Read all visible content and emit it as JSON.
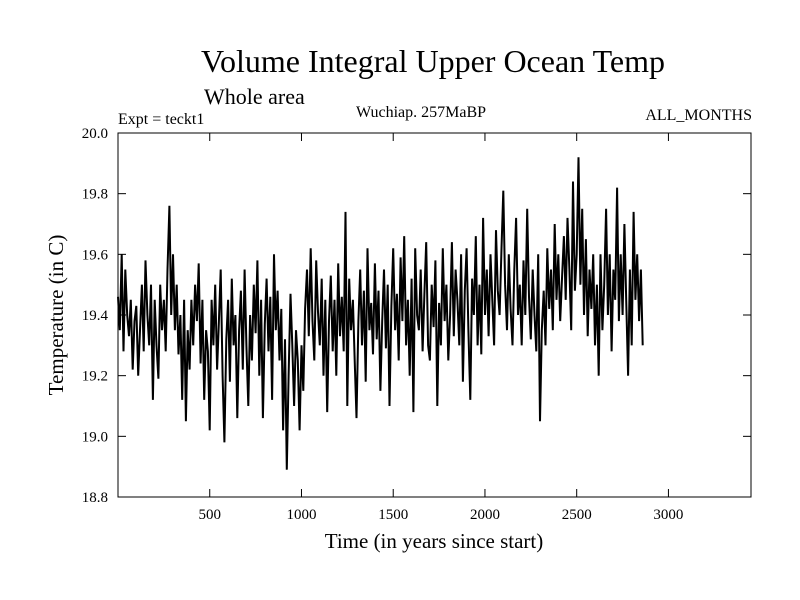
{
  "chart_data": {
    "type": "line",
    "title": "Volume Integral Upper Ocean Temp",
    "subtitle": "Whole area",
    "experiment": "Expt = teckt1",
    "period": "Wuchiap. 257MaBP",
    "months": "ALL_MONTHS",
    "xlabel": "Time (in years since start)",
    "ylabel": "Temperature (in C)",
    "xlim": [
      0,
      3450
    ],
    "ylim": [
      18.8,
      20.0
    ],
    "x_ticks": [
      500,
      1000,
      1500,
      2000,
      2500,
      3000
    ],
    "x_tick_labels": [
      "500",
      "1000",
      "1500",
      "2000",
      "2500",
      "3000"
    ],
    "y_ticks": [
      18.8,
      19.0,
      19.2,
      19.4,
      19.6,
      19.8,
      20.0
    ],
    "y_tick_labels": [
      "18.8",
      "19.0",
      "19.2",
      "19.4",
      "19.6",
      "19.8",
      "20.0"
    ],
    "series": [
      {
        "name": "teckt1",
        "color": "#000000",
        "x_start": 0,
        "x_step": 10,
        "values": [
          19.46,
          19.35,
          19.6,
          19.28,
          19.55,
          19.4,
          19.33,
          19.45,
          19.22,
          19.38,
          19.43,
          19.2,
          19.35,
          19.5,
          19.28,
          19.58,
          19.4,
          19.3,
          19.5,
          19.12,
          19.45,
          19.3,
          19.19,
          19.5,
          19.35,
          19.45,
          19.28,
          19.55,
          19.76,
          19.4,
          19.6,
          19.35,
          19.5,
          19.27,
          19.4,
          19.12,
          19.45,
          19.05,
          19.35,
          19.22,
          19.45,
          19.3,
          19.5,
          19.38,
          19.57,
          19.24,
          19.45,
          19.12,
          19.35,
          19.28,
          19.02,
          19.45,
          19.3,
          19.5,
          19.22,
          19.38,
          19.55,
          19.2,
          18.98,
          19.32,
          19.45,
          19.18,
          19.52,
          19.3,
          19.4,
          19.06,
          19.35,
          19.48,
          19.22,
          19.55,
          19.3,
          19.1,
          19.4,
          19.25,
          19.5,
          19.34,
          19.58,
          19.2,
          19.45,
          19.06,
          19.37,
          19.52,
          19.28,
          19.46,
          19.12,
          19.6,
          19.35,
          19.48,
          19.25,
          19.42,
          19.02,
          19.32,
          18.89,
          19.2,
          19.47,
          19.3,
          19.1,
          19.35,
          19.25,
          19.02,
          19.3,
          19.15,
          19.42,
          19.55,
          19.33,
          19.62,
          19.38,
          19.25,
          19.58,
          19.41,
          19.3,
          19.52,
          19.2,
          19.45,
          19.08,
          19.38,
          19.53,
          19.28,
          19.45,
          19.2,
          19.57,
          19.33,
          19.46,
          19.28,
          19.74,
          19.1,
          19.52,
          19.35,
          19.45,
          19.25,
          19.06,
          19.38,
          19.55,
          19.3,
          19.48,
          19.18,
          19.62,
          19.35,
          19.44,
          19.27,
          19.57,
          19.32,
          19.48,
          19.15,
          19.38,
          19.55,
          19.29,
          19.5,
          19.1,
          19.43,
          19.62,
          19.35,
          19.47,
          19.25,
          19.59,
          19.38,
          19.66,
          19.3,
          19.45,
          19.2,
          19.52,
          19.08,
          19.62,
          19.4,
          19.35,
          19.55,
          19.28,
          19.47,
          19.64,
          19.3,
          19.25,
          19.5,
          19.36,
          19.58,
          19.1,
          19.44,
          19.3,
          19.62,
          19.38,
          19.5,
          19.25,
          19.4,
          19.64,
          19.33,
          19.55,
          19.45,
          19.3,
          19.6,
          19.18,
          19.48,
          19.62,
          19.35,
          19.12,
          19.52,
          19.4,
          19.66,
          19.3,
          19.5,
          19.27,
          19.72,
          19.4,
          19.55,
          19.33,
          19.6,
          19.45,
          19.3,
          19.68,
          19.48,
          19.4,
          19.62,
          19.81,
          19.5,
          19.35,
          19.6,
          19.42,
          19.3,
          19.55,
          19.72,
          19.4,
          19.5,
          19.3,
          19.58,
          19.4,
          19.75,
          19.46,
          19.32,
          19.55,
          19.4,
          19.28,
          19.6,
          19.05,
          19.35,
          19.48,
          19.3,
          19.62,
          19.42,
          19.55,
          19.35,
          19.7,
          19.45,
          19.6,
          19.38,
          19.52,
          19.66,
          19.45,
          19.72,
          19.55,
          19.35,
          19.84,
          19.48,
          19.6,
          19.92,
          19.5,
          19.75,
          19.4,
          19.65,
          19.33,
          19.55,
          19.42,
          19.6,
          19.3,
          19.5,
          19.2,
          19.6,
          19.35,
          19.5,
          19.75,
          19.4,
          19.6,
          19.28,
          19.55,
          19.45,
          19.82,
          19.38,
          19.6,
          19.4,
          19.7,
          19.45,
          19.2,
          19.55,
          19.3,
          19.74,
          19.45,
          19.6,
          19.38,
          19.55,
          19.3
        ]
      }
    ]
  }
}
